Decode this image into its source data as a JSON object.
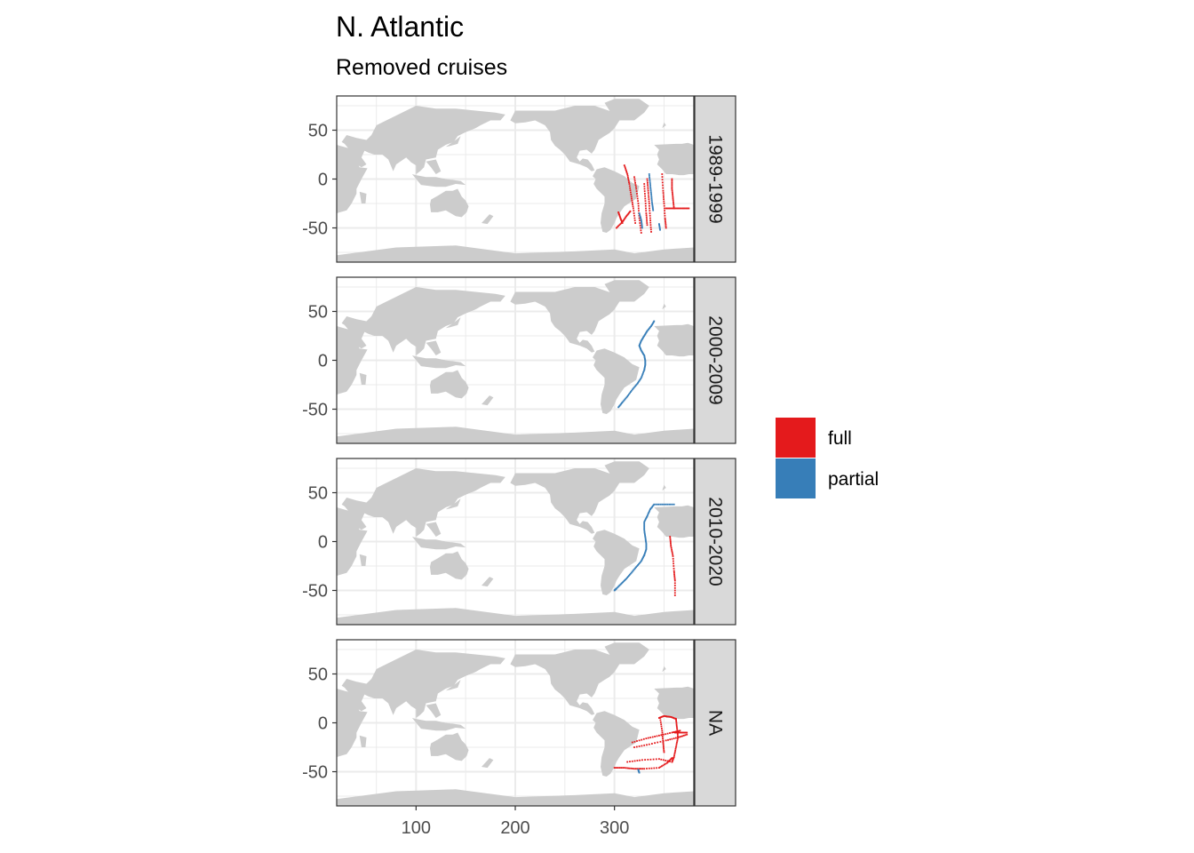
{
  "title": "N. Atlantic",
  "subtitle": "Removed cruises",
  "colors": {
    "full": "#e41a1c",
    "partial": "#377eb8",
    "land": "#cccccc",
    "grid": "#ebebeb",
    "strip_bg": "#d9d9d9",
    "panel_border": "#333333"
  },
  "chart_data": {
    "type": "scatter",
    "facet_by": "decade",
    "panels": [
      {
        "label": "1989-1999",
        "tracks": [
          {
            "type": "full",
            "points": [
              [
                310,
                14
              ],
              [
                313,
                5
              ],
              [
                315,
                -5
              ],
              [
                317,
                -18
              ],
              [
                319,
                -30
              ],
              [
                321,
                -45
              ]
            ]
          },
          {
            "type": "full",
            "points": [
              [
                320,
                2
              ],
              [
                322,
                -10
              ],
              [
                324,
                -25
              ],
              [
                325,
                -40
              ],
              [
                327,
                -55
              ]
            ]
          },
          {
            "type": "full",
            "points": [
              [
                333,
                0
              ],
              [
                334,
                -12
              ],
              [
                335,
                -25
              ],
              [
                336,
                -40
              ],
              [
                337,
                -54
              ]
            ]
          },
          {
            "type": "full",
            "points": [
              [
                330,
                -5
              ],
              [
                331,
                -20
              ],
              [
                332,
                -35
              ],
              [
                333,
                -47
              ]
            ]
          },
          {
            "type": "full",
            "points": [
              [
                348,
                5
              ],
              [
                349,
                -12
              ],
              [
                350,
                -25
              ],
              [
                351,
                -40
              ],
              [
                352,
                -50
              ]
            ]
          },
          {
            "type": "full",
            "points": [
              [
                358,
                0
              ],
              [
                358,
                -10
              ],
              [
                359,
                -20
              ],
              [
                360,
                -30
              ]
            ]
          },
          {
            "type": "full",
            "points": [
              [
                352,
                -30
              ],
              [
                360,
                -30
              ],
              [
                368,
                -30
              ],
              [
                375,
                -30
              ]
            ]
          },
          {
            "type": "full",
            "points": [
              [
                302,
                -50
              ],
              [
                308,
                -44
              ],
              [
                312,
                -38
              ],
              [
                316,
                -33
              ]
            ]
          },
          {
            "type": "full",
            "points": [
              [
                304,
                -34
              ],
              [
                306,
                -40
              ],
              [
                308,
                -45
              ]
            ]
          },
          {
            "type": "partial",
            "points": [
              [
                335,
                5
              ],
              [
                336,
                -5
              ],
              [
                337,
                -15
              ],
              [
                338,
                -25
              ],
              [
                339,
                -32
              ]
            ]
          },
          {
            "type": "partial",
            "points": [
              [
                325,
                -35
              ],
              [
                327,
                -42
              ],
              [
                328,
                -50
              ]
            ]
          },
          {
            "type": "partial",
            "points": [
              [
                345,
                -46
              ],
              [
                346,
                -52
              ]
            ]
          }
        ]
      },
      {
        "label": "2000-2009",
        "tracks": [
          {
            "type": "partial",
            "points": [
              [
                340,
                40
              ],
              [
                337,
                35
              ],
              [
                333,
                30
              ],
              [
                330,
                25
              ],
              [
                327,
                20
              ],
              [
                325,
                15
              ],
              [
                327,
                10
              ],
              [
                330,
                5
              ],
              [
                331,
                0
              ],
              [
                331,
                -5
              ],
              [
                330,
                -10
              ]
            ]
          },
          {
            "type": "partial",
            "points": [
              [
                330,
                -10
              ],
              [
                327,
                -18
              ],
              [
                323,
                -24
              ],
              [
                318,
                -30
              ],
              [
                313,
                -37
              ],
              [
                308,
                -43
              ],
              [
                304,
                -48
              ]
            ]
          }
        ]
      },
      {
        "label": "2010-2020",
        "tracks": [
          {
            "type": "partial",
            "points": [
              [
                360,
                38
              ],
              [
                350,
                38
              ],
              [
                340,
                38
              ],
              [
                336,
                33
              ],
              [
                333,
                26
              ],
              [
                330,
                20
              ],
              [
                330,
                12
              ],
              [
                331,
                5
              ],
              [
                332,
                -2
              ],
              [
                332,
                -8
              ],
              [
                330,
                -14
              ]
            ]
          },
          {
            "type": "partial",
            "points": [
              [
                330,
                -14
              ],
              [
                327,
                -20
              ],
              [
                322,
                -26
              ],
              [
                317,
                -32
              ],
              [
                312,
                -38
              ],
              [
                307,
                -43
              ],
              [
                302,
                -48
              ],
              [
                300,
                -50
              ]
            ]
          },
          {
            "type": "full",
            "points": [
              [
                356,
                5
              ],
              [
                357,
                -5
              ],
              [
                359,
                -15
              ],
              [
                360,
                -30
              ],
              [
                361,
                -40
              ],
              [
                361,
                -55
              ]
            ]
          }
        ]
      },
      {
        "label": "NA",
        "tracks": [
          {
            "type": "full",
            "points": [
              [
                345,
                5
              ],
              [
                350,
                7
              ],
              [
                357,
                6
              ],
              [
                362,
                4
              ]
            ]
          },
          {
            "type": "full",
            "points": [
              [
                362,
                4
              ],
              [
                363,
                -5
              ],
              [
                364,
                -15
              ],
              [
                362,
                -25
              ],
              [
                360,
                -35
              ],
              [
                358,
                -40
              ]
            ]
          },
          {
            "type": "full",
            "points": [
              [
                318,
                -20
              ],
              [
                332,
                -16
              ],
              [
                345,
                -13
              ],
              [
                358,
                -10
              ],
              [
                366,
                -8
              ]
            ]
          },
          {
            "type": "full",
            "points": [
              [
                320,
                -25
              ],
              [
                335,
                -22
              ],
              [
                352,
                -18
              ],
              [
                364,
                -15
              ],
              [
                373,
                -12
              ]
            ]
          },
          {
            "type": "full",
            "points": [
              [
                313,
                -40
              ],
              [
                328,
                -38
              ],
              [
                345,
                -37
              ],
              [
                358,
                -40
              ]
            ]
          },
          {
            "type": "full",
            "points": [
              [
                346,
                5
              ],
              [
                348,
                -8
              ],
              [
                349,
                -20
              ],
              [
                350,
                -30
              ]
            ]
          },
          {
            "type": "full",
            "points": [
              [
                361,
                -10
              ],
              [
                367,
                -10
              ],
              [
                373,
                -10
              ]
            ]
          },
          {
            "type": "full",
            "points": [
              [
                300,
                -46
              ],
              [
                310,
                -46
              ],
              [
                320,
                -47
              ],
              [
                330,
                -47
              ],
              [
                345,
                -46
              ],
              [
                353,
                -41
              ],
              [
                358,
                -36
              ]
            ]
          },
          {
            "type": "partial",
            "points": [
              [
                324,
                -48
              ],
              [
                325,
                -51
              ]
            ]
          }
        ]
      }
    ],
    "x_ticks": [
      100,
      200,
      300
    ],
    "y_ticks": [
      50,
      0,
      -50
    ],
    "xlim": [
      20,
      380
    ],
    "ylim": [
      -85,
      85
    ],
    "legend": {
      "position": "right",
      "entries": [
        {
          "key": "full",
          "label": "full"
        },
        {
          "key": "partial",
          "label": "partial"
        }
      ]
    },
    "grid": true
  }
}
